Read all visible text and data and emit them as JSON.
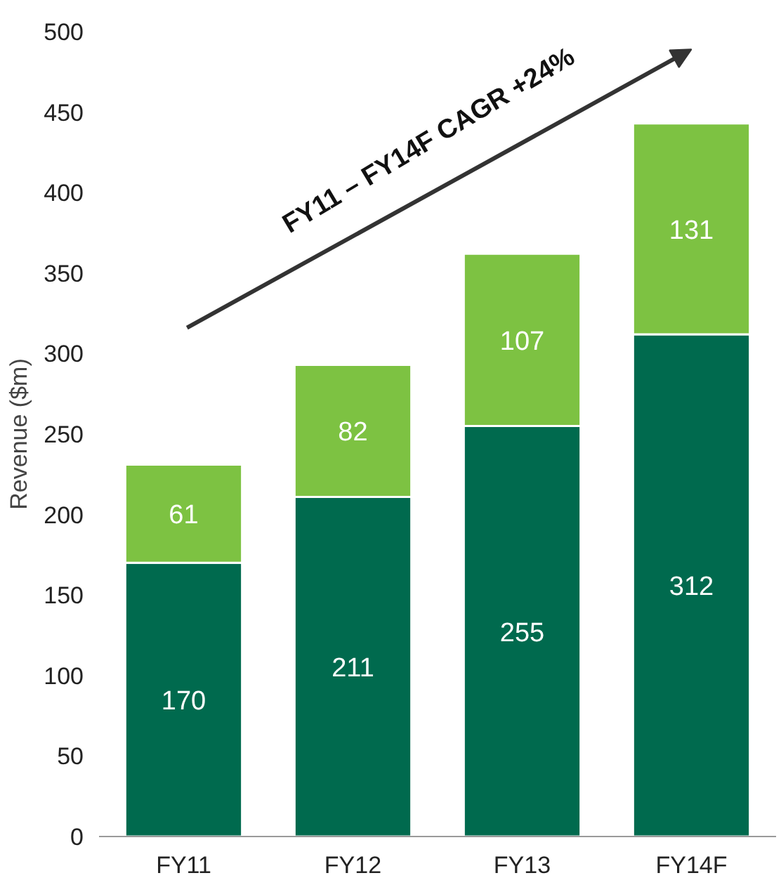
{
  "chart_data": {
    "type": "bar",
    "stacked": true,
    "ylabel": "Revenue ($m)",
    "categories": [
      "FY11",
      "FY12",
      "FY13",
      "FY14F"
    ],
    "series": [
      {
        "color": "#006a4e",
        "values": [
          170,
          211,
          255,
          312
        ]
      },
      {
        "color": "#7dc242",
        "values": [
          61,
          82,
          107,
          131
        ]
      }
    ],
    "ylim": [
      0,
      500
    ],
    "yticks": [
      0,
      50,
      100,
      150,
      200,
      250,
      300,
      350,
      400,
      450,
      500
    ],
    "grid": false,
    "data_labels": true,
    "annotations": [
      "FY11 – FY14F CAGR +24%"
    ]
  }
}
